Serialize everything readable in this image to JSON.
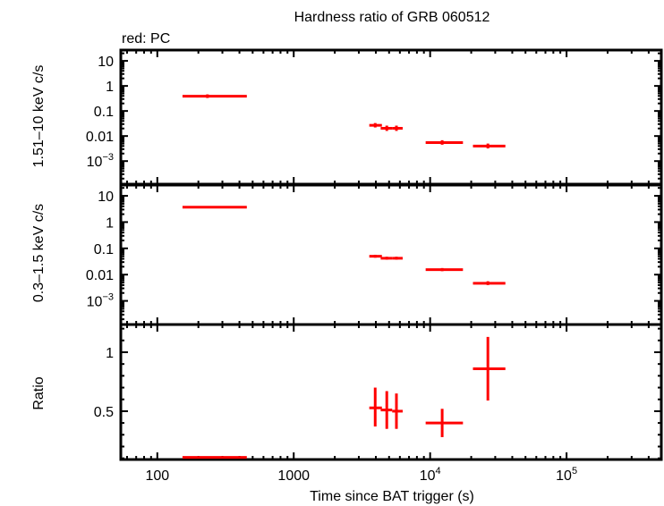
{
  "chart_data": [
    {
      "panel": "hard",
      "type": "scatter",
      "title": "Hardness ratio of GRB 060512",
      "legend_note": "red: PC",
      "ylabel": "1.51–10 keV c/s",
      "yscale": "log",
      "ylim": [
        0.00012,
        27
      ],
      "yticks": [
        {
          "v": 10,
          "label": "10"
        },
        {
          "v": 1,
          "label": "1"
        },
        {
          "v": 0.1,
          "label": "0.1"
        },
        {
          "v": 0.01,
          "label": "0.01"
        },
        {
          "v": 0.001,
          "label": "10",
          "sup": "−3"
        }
      ],
      "points": [
        {
          "x": 233,
          "xlo": 153,
          "xhi": 453,
          "y": 0.39,
          "ylo": 0.33,
          "yhi": 0.46
        },
        {
          "x": 3955,
          "xlo": 3580,
          "xhi": 4430,
          "y": 0.0268,
          "ylo": 0.022,
          "yhi": 0.033
        },
        {
          "x": 4810,
          "xlo": 4340,
          "xhi": 5270,
          "y": 0.0204,
          "ylo": 0.016,
          "yhi": 0.026
        },
        {
          "x": 5660,
          "xlo": 5270,
          "xhi": 6290,
          "y": 0.0204,
          "ylo": 0.016,
          "yhi": 0.026
        },
        {
          "x": 12250,
          "xlo": 9270,
          "xhi": 17400,
          "y": 0.0055,
          "ylo": 0.0045,
          "yhi": 0.0068
        },
        {
          "x": 26500,
          "xlo": 20600,
          "xhi": 35600,
          "y": 0.004,
          "ylo": 0.0032,
          "yhi": 0.005
        }
      ]
    },
    {
      "panel": "soft",
      "type": "scatter",
      "ylabel": "0.3–1.5 keV c/s",
      "yscale": "log",
      "ylim": [
        0.000126,
        25.7
      ],
      "yticks": [
        {
          "v": 10,
          "label": "10"
        },
        {
          "v": 1,
          "label": "1"
        },
        {
          "v": 0.1,
          "label": "0.1"
        },
        {
          "v": 0.01,
          "label": "0.01"
        },
        {
          "v": 0.001,
          "label": "10",
          "sup": "−3"
        }
      ],
      "points": [
        {
          "x": 233,
          "xlo": 153,
          "xhi": 453,
          "y": 3.7,
          "ylo": 3.5,
          "yhi": 3.9
        },
        {
          "x": 3955,
          "xlo": 3580,
          "xhi": 4430,
          "y": 0.05,
          "ylo": 0.044,
          "yhi": 0.057
        },
        {
          "x": 4810,
          "xlo": 4340,
          "xhi": 5270,
          "y": 0.042,
          "ylo": 0.037,
          "yhi": 0.048
        },
        {
          "x": 5660,
          "xlo": 5270,
          "xhi": 6290,
          "y": 0.042,
          "ylo": 0.037,
          "yhi": 0.048
        },
        {
          "x": 12250,
          "xlo": 9270,
          "xhi": 17400,
          "y": 0.0155,
          "ylo": 0.0135,
          "yhi": 0.0178
        },
        {
          "x": 26500,
          "xlo": 20600,
          "xhi": 35600,
          "y": 0.0047,
          "ylo": 0.004,
          "yhi": 0.0056
        }
      ]
    },
    {
      "panel": "ratio",
      "type": "scatter",
      "ylabel": "Ratio",
      "yscale": "linear",
      "ylim": [
        0.09,
        1.235
      ],
      "yticks": [
        {
          "v": 1,
          "label": "1"
        },
        {
          "v": 0.5,
          "label": "0.5"
        }
      ],
      "yminor": [
        0.1,
        0.2,
        0.3,
        0.4,
        0.6,
        0.7,
        0.8,
        0.9,
        1.1,
        1.2
      ],
      "xlabel": "Time since BAT trigger (s)",
      "xscale": "log",
      "xlim": [
        54,
        495000
      ],
      "xticks": [
        {
          "v": 100,
          "label": "100"
        },
        {
          "v": 1000,
          "label": "1000"
        },
        {
          "v": 10000,
          "label": "10",
          "sup": "4"
        },
        {
          "v": 100000,
          "label": "10",
          "sup": "5"
        }
      ],
      "points": [
        {
          "x": 233,
          "xlo": 153,
          "xhi": 453,
          "y": 0.108,
          "ylo": 0.1,
          "yhi": 0.116
        },
        {
          "x": 3955,
          "xlo": 3580,
          "xhi": 4430,
          "y": 0.528,
          "ylo": 0.37,
          "yhi": 0.7
        },
        {
          "x": 4810,
          "xlo": 4340,
          "xhi": 5270,
          "y": 0.51,
          "ylo": 0.35,
          "yhi": 0.67
        },
        {
          "x": 5660,
          "xlo": 5270,
          "xhi": 6290,
          "y": 0.5,
          "ylo": 0.35,
          "yhi": 0.65
        },
        {
          "x": 12250,
          "xlo": 9270,
          "xhi": 17400,
          "y": 0.4,
          "ylo": 0.28,
          "yhi": 0.52
        },
        {
          "x": 26500,
          "xlo": 20600,
          "xhi": 35600,
          "y": 0.86,
          "ylo": 0.59,
          "yhi": 1.13
        }
      ]
    }
  ],
  "colors": {
    "series": "#ff0000",
    "axes": "#000000"
  }
}
